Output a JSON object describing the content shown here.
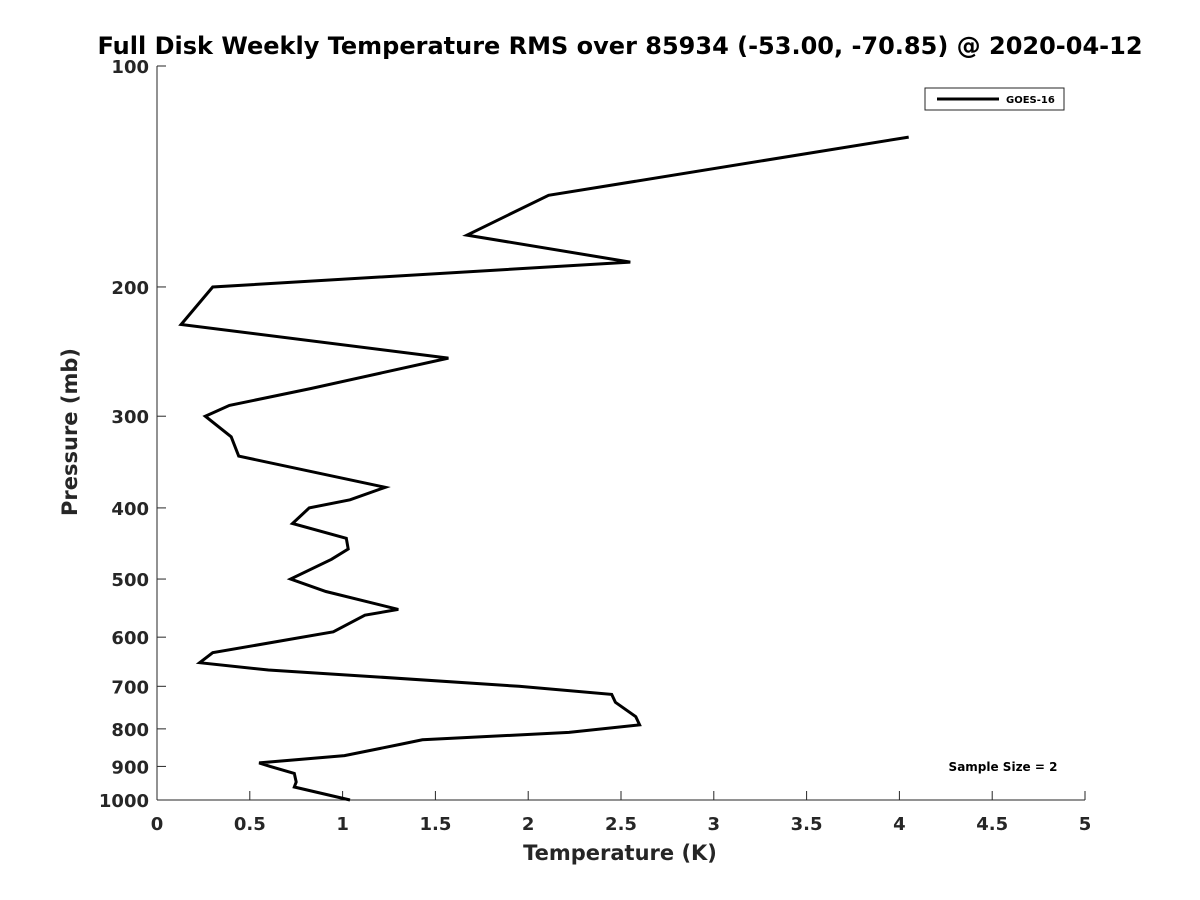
{
  "chart_data": {
    "type": "line",
    "title": "Full Disk Weekly Temperature RMS over 85934 (-53.00, -70.85) @ 2020-04-12",
    "xlabel": "Temperature (K)",
    "ylabel": "Pressure (mb)",
    "xlim": [
      0,
      5
    ],
    "ylim": [
      100,
      1000
    ],
    "y_scale": "log",
    "y_reversed": true,
    "x_ticks": [
      "0",
      "0.5",
      "1",
      "1.5",
      "2",
      "2.5",
      "3",
      "3.5",
      "4",
      "4.5",
      "5"
    ],
    "y_ticks": [
      "100",
      "200",
      "300",
      "400",
      "500",
      "600",
      "700",
      "800",
      "900",
      "1000"
    ],
    "grid": false,
    "legend": {
      "placement": "top-right",
      "entries": [
        "GOES-16"
      ]
    },
    "annotation": "Sample Size = 2",
    "series": [
      {
        "name": "GOES-16",
        "color": "#000000",
        "points": [
          [
            4.05,
            125
          ],
          [
            2.11,
            150
          ],
          [
            1.67,
            170
          ],
          [
            2.55,
            185
          ],
          [
            0.3,
            200
          ],
          [
            0.13,
            225
          ],
          [
            1.57,
            250
          ],
          [
            0.83,
            275
          ],
          [
            0.39,
            290
          ],
          [
            0.26,
            300
          ],
          [
            0.4,
            320
          ],
          [
            0.44,
            340
          ],
          [
            1.23,
            375
          ],
          [
            1.04,
            390
          ],
          [
            0.82,
            400
          ],
          [
            0.73,
            420
          ],
          [
            1.02,
            440
          ],
          [
            1.03,
            455
          ],
          [
            0.94,
            470
          ],
          [
            0.72,
            500
          ],
          [
            0.91,
            520
          ],
          [
            1.3,
            550
          ],
          [
            1.12,
            560
          ],
          [
            0.95,
            590
          ],
          [
            0.3,
            630
          ],
          [
            0.23,
            650
          ],
          [
            0.6,
            665
          ],
          [
            1.2,
            680
          ],
          [
            1.95,
            700
          ],
          [
            2.45,
            718
          ],
          [
            2.47,
            736
          ],
          [
            2.58,
            770
          ],
          [
            2.6,
            790
          ],
          [
            2.22,
            809
          ],
          [
            1.43,
            828
          ],
          [
            1.31,
            840
          ],
          [
            1.01,
            870
          ],
          [
            0.55,
            890
          ],
          [
            0.61,
            900
          ],
          [
            0.74,
            920
          ],
          [
            0.75,
            945
          ],
          [
            0.74,
            960
          ],
          [
            1.04,
            1000
          ]
        ]
      }
    ]
  }
}
